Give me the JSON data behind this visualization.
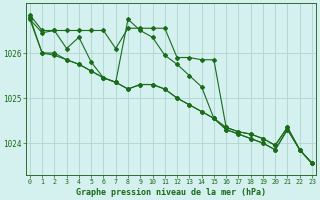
{
  "title": "Graphe pression niveau de la mer (hPa)",
  "xlabel": "Graphe pression niveau de la mer (hPa)",
  "bg_color": "#d4f0ef",
  "grid_color": "#b0d4d0",
  "line_color": "#1a6b1a",
  "border_color": "#2d6b2d",
  "x_ticks": [
    0,
    1,
    2,
    3,
    4,
    5,
    6,
    7,
    8,
    9,
    10,
    11,
    12,
    13,
    14,
    15,
    16,
    17,
    18,
    19,
    20,
    21,
    22,
    23
  ],
  "y_ticks": [
    1024,
    1025,
    1026
  ],
  "ylim": [
    1023.3,
    1027.1
  ],
  "xlim": [
    -0.3,
    23.3
  ],
  "series": [
    [
      1026.85,
      1026.5,
      1026.5,
      1026.5,
      1026.5,
      1026.5,
      1026.5,
      1026.1,
      1026.55,
      1026.55,
      1026.55,
      1026.55,
      1025.9,
      1025.9,
      1025.85,
      1025.85,
      1024.35,
      1024.25,
      1024.2,
      1024.1,
      1023.95,
      1024.35,
      1023.85,
      1023.55
    ],
    [
      1026.8,
      1026.0,
      1026.0,
      1025.85,
      1025.75,
      1025.6,
      1025.45,
      1025.35,
      1025.2,
      1025.3,
      1025.3,
      1025.2,
      1025.0,
      1024.85,
      1024.7,
      1024.55,
      1024.3,
      1024.2,
      1024.1,
      1024.0,
      1023.85,
      1024.3,
      1023.85,
      1023.55
    ],
    [
      1026.75,
      1026.0,
      1025.95,
      1025.85,
      1025.75,
      1025.6,
      1025.45,
      1025.35,
      1025.2,
      1025.3,
      1025.3,
      1025.2,
      1025.0,
      1024.85,
      1024.7,
      1024.55,
      1024.3,
      1024.2,
      1024.1,
      1024.0,
      1023.85,
      1024.3,
      1023.85,
      1023.55
    ],
    [
      1026.75,
      1026.45,
      1026.5,
      1026.1,
      1026.35,
      1025.8,
      1025.45,
      1025.35,
      1026.75,
      1026.5,
      1026.35,
      1025.95,
      1025.75,
      1025.5,
      1025.25,
      1024.55,
      1024.35,
      1024.25,
      1024.2,
      1024.1,
      1023.95,
      1024.35,
      1023.85,
      1023.55
    ]
  ]
}
